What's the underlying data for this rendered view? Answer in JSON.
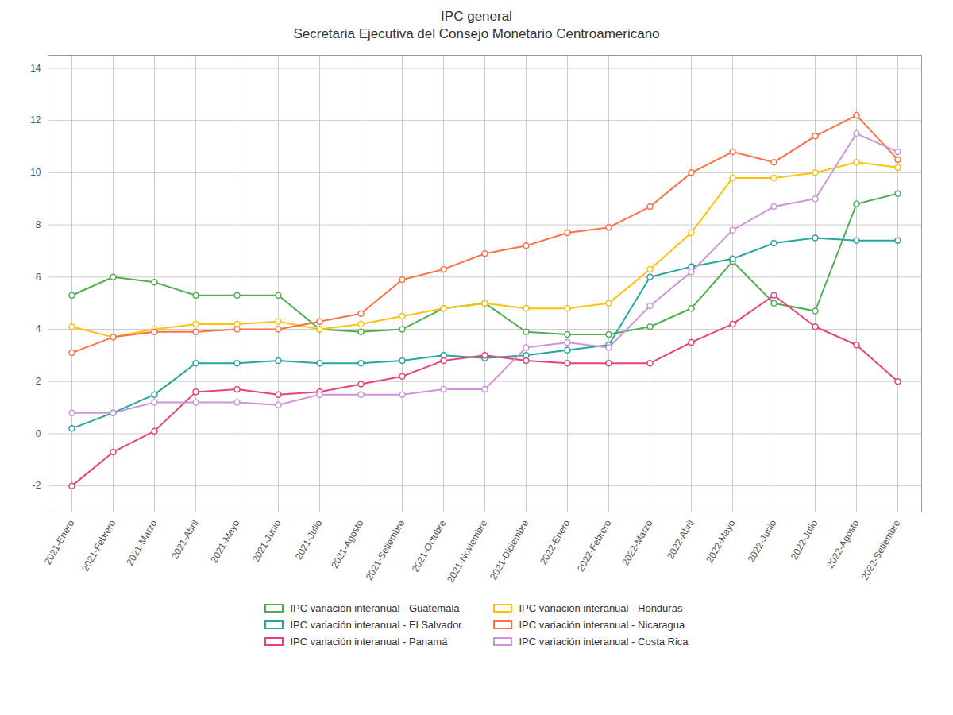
{
  "chart_data": {
    "type": "line",
    "title": "IPC general\nSecretaria Ejecutiva del Consejo Monetario Centroamericano",
    "categories": [
      "2021-Enero",
      "2021-Febrero",
      "2021-Marzo",
      "2021-Abril",
      "2021-Mayo",
      "2021-Junio",
      "2021-Julio",
      "2021-Agosto",
      "2021-Setiembre",
      "2021-Octubre",
      "2021-Noviembre",
      "2021-Diciembre",
      "2022-Enero",
      "2022-Febrero",
      "2022-Marzo",
      "2022-Abril",
      "2022-Mayo",
      "2022-Junio",
      "2022-Julio",
      "2022-Agosto",
      "2022-Setiembre"
    ],
    "series": [
      {
        "name": "IPC variación interanual - Guatemala",
        "color": "#4CAF50",
        "values": [
          5.3,
          6.0,
          5.8,
          5.3,
          5.3,
          5.3,
          4.0,
          3.9,
          4.0,
          4.8,
          5.0,
          3.9,
          3.8,
          3.8,
          4.1,
          4.8,
          6.6,
          5.0,
          4.7,
          8.8,
          9.2
        ]
      },
      {
        "name": "IPC variación interanual - Honduras",
        "color": "#FFC107",
        "values": [
          4.1,
          3.7,
          4.0,
          4.2,
          4.2,
          4.3,
          4.0,
          4.2,
          4.5,
          4.8,
          5.0,
          4.8,
          4.8,
          5.0,
          6.3,
          7.7,
          9.8,
          9.8,
          10.0,
          10.4,
          10.2
        ]
      },
      {
        "name": "IPC variación interanual - El Salvador",
        "color": "#26A69A",
        "values": [
          0.2,
          0.8,
          1.5,
          2.7,
          2.7,
          2.8,
          2.7,
          2.7,
          2.8,
          3.0,
          2.9,
          3.0,
          3.2,
          3.4,
          6.0,
          6.4,
          6.7,
          7.3,
          7.5,
          7.4,
          7.4
        ]
      },
      {
        "name": "IPC variación interanual - Nicaragua",
        "color": "#FF7043",
        "values": [
          3.1,
          3.7,
          3.9,
          3.9,
          4.0,
          4.0,
          4.3,
          4.6,
          5.9,
          6.3,
          6.9,
          7.2,
          7.7,
          7.9,
          8.7,
          10.0,
          10.8,
          10.4,
          11.4,
          12.2,
          10.5
        ]
      },
      {
        "name": "IPC variación interanual - Panamá",
        "color": "#EC407A",
        "values": [
          -2.0,
          -0.7,
          0.1,
          1.6,
          1.7,
          1.5,
          1.6,
          1.9,
          2.2,
          2.8,
          3.0,
          2.8,
          2.7,
          2.7,
          2.7,
          3.5,
          4.2,
          5.3,
          4.1,
          3.4,
          2.0
        ]
      },
      {
        "name": "IPC variación interanual - Costa Rica",
        "color": "#CE93D8",
        "values": [
          0.8,
          0.8,
          1.2,
          1.2,
          1.2,
          1.1,
          1.5,
          1.5,
          1.5,
          1.7,
          1.7,
          3.3,
          3.5,
          3.3,
          4.9,
          6.2,
          7.8,
          8.7,
          9.0,
          11.5,
          10.8
        ]
      }
    ],
    "ylim": [
      -3,
      14.5
    ],
    "yticks": [
      -2,
      0,
      2,
      4,
      6,
      8,
      10,
      12,
      14
    ],
    "grid": true,
    "legend": "bottom",
    "marker": "circle",
    "line_style": "solid"
  }
}
